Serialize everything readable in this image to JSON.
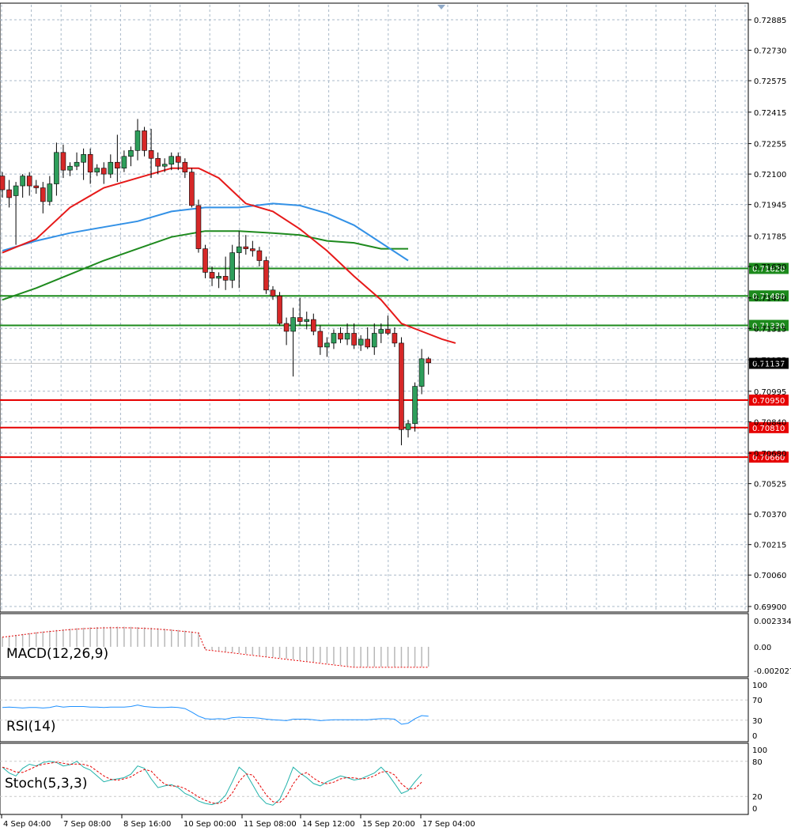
{
  "chart_data": [
    {
      "type": "candlestick",
      "symbol_panel": "price",
      "y_ticks": [
        "0.72885",
        "0.72730",
        "0.72575",
        "0.72415",
        "0.72255",
        "0.72100",
        "0.71945",
        "0.71785",
        "0.71630",
        "0.71470",
        "0.71315",
        "0.71155",
        "0.70995",
        "0.70840",
        "0.70680",
        "0.70525",
        "0.70370",
        "0.70215",
        "0.70060",
        "0.69900"
      ],
      "ylim": [
        0.699,
        0.7293
      ],
      "x_labels": [
        "4 Sep 04:00",
        "7 Sep 08:00",
        "8 Sep 16:00",
        "10 Sep 00:00",
        "11 Sep 08:00",
        "14 Sep 12:00",
        "15 Sep 20:00",
        "17 Sep 04:00"
      ],
      "current_price": "0.71137",
      "resistance_levels": [
        "0.71620",
        "0.71480",
        "0.71330"
      ],
      "support_levels": [
        "0.70950",
        "0.70810",
        "0.70660"
      ],
      "colors": {
        "bull": "#2e9e5b",
        "bear": "#d62828",
        "resistance": "#1c8a1c",
        "support": "#e60000",
        "ma_fast": "#e61919",
        "ma_mid": "#3391e6",
        "ma_slow": "#1e8a1e",
        "grid": "#a9b8c8"
      },
      "candles": [
        [
          0.7209,
          0.7211,
          0.7198,
          0.7202
        ],
        [
          0.7202,
          0.7207,
          0.7193,
          0.7198
        ],
        [
          0.7199,
          0.7206,
          0.7174,
          0.7204
        ],
        [
          0.7204,
          0.721,
          0.7198,
          0.7209
        ],
        [
          0.7209,
          0.7211,
          0.7199,
          0.7204
        ],
        [
          0.7204,
          0.7207,
          0.72,
          0.7203
        ],
        [
          0.7203,
          0.7206,
          0.719,
          0.7196
        ],
        [
          0.7196,
          0.7209,
          0.7194,
          0.7205
        ],
        [
          0.7205,
          0.7226,
          0.7199,
          0.7221
        ],
        [
          0.7221,
          0.7225,
          0.7208,
          0.7212
        ],
        [
          0.7212,
          0.7216,
          0.7209,
          0.7214
        ],
        [
          0.7214,
          0.7221,
          0.7212,
          0.7216
        ],
        [
          0.7216,
          0.7223,
          0.7207,
          0.722
        ],
        [
          0.722,
          0.7223,
          0.7205,
          0.7211
        ],
        [
          0.7211,
          0.7215,
          0.7209,
          0.7213
        ],
        [
          0.7213,
          0.7216,
          0.7205,
          0.721
        ],
        [
          0.721,
          0.722,
          0.7208,
          0.7216
        ],
        [
          0.7216,
          0.723,
          0.7206,
          0.7213
        ],
        [
          0.7213,
          0.7222,
          0.7211,
          0.7219
        ],
        [
          0.7219,
          0.7224,
          0.7214,
          0.7222
        ],
        [
          0.7222,
          0.7238,
          0.7217,
          0.7232
        ],
        [
          0.7232,
          0.7234,
          0.7219,
          0.7222
        ],
        [
          0.7222,
          0.7233,
          0.7208,
          0.7218
        ],
        [
          0.7218,
          0.7221,
          0.721,
          0.7214
        ],
        [
          0.7214,
          0.7218,
          0.7211,
          0.7215
        ],
        [
          0.7215,
          0.7221,
          0.7212,
          0.7219
        ],
        [
          0.7219,
          0.7221,
          0.7212,
          0.7216
        ],
        [
          0.7216,
          0.7218,
          0.7208,
          0.7211
        ],
        [
          0.7211,
          0.7213,
          0.7193,
          0.7194
        ],
        [
          0.7194,
          0.7197,
          0.717,
          0.7172
        ],
        [
          0.7172,
          0.7174,
          0.7157,
          0.716
        ],
        [
          0.716,
          0.7163,
          0.7153,
          0.7157
        ],
        [
          0.7157,
          0.716,
          0.7152,
          0.7158
        ],
        [
          0.7158,
          0.7168,
          0.7151,
          0.7156
        ],
        [
          0.7156,
          0.7174,
          0.7152,
          0.717
        ],
        [
          0.717,
          0.7181,
          0.7152,
          0.7173
        ],
        [
          0.7173,
          0.7179,
          0.7169,
          0.7172
        ],
        [
          0.7172,
          0.7176,
          0.7168,
          0.7171
        ],
        [
          0.7171,
          0.7173,
          0.7163,
          0.7166
        ],
        [
          0.7166,
          0.7168,
          0.7149,
          0.7151
        ],
        [
          0.7151,
          0.7153,
          0.7146,
          0.7148
        ],
        [
          0.7148,
          0.715,
          0.7133,
          0.7134
        ],
        [
          0.7134,
          0.7137,
          0.7123,
          0.713
        ],
        [
          0.713,
          0.7142,
          0.7107,
          0.7137
        ],
        [
          0.7137,
          0.7147,
          0.7133,
          0.7135
        ],
        [
          0.7135,
          0.714,
          0.7131,
          0.7136
        ],
        [
          0.7136,
          0.7139,
          0.7128,
          0.713
        ],
        [
          0.713,
          0.7133,
          0.7118,
          0.7122
        ],
        [
          0.7122,
          0.7127,
          0.7117,
          0.7124
        ],
        [
          0.7124,
          0.7131,
          0.7121,
          0.7129
        ],
        [
          0.7129,
          0.7132,
          0.7124,
          0.7126
        ],
        [
          0.7126,
          0.7134,
          0.7123,
          0.7129
        ],
        [
          0.7129,
          0.7134,
          0.7121,
          0.7123
        ],
        [
          0.7123,
          0.7128,
          0.712,
          0.7126
        ],
        [
          0.7126,
          0.7132,
          0.7121,
          0.7122
        ],
        [
          0.7122,
          0.7134,
          0.7118,
          0.7129
        ],
        [
          0.7129,
          0.7134,
          0.7124,
          0.7131
        ],
        [
          0.7131,
          0.7138,
          0.7128,
          0.7129
        ],
        [
          0.7129,
          0.7132,
          0.7122,
          0.7124
        ],
        [
          0.7124,
          0.7127,
          0.7072,
          0.708
        ],
        [
          0.708,
          0.7085,
          0.7076,
          0.7083
        ],
        [
          0.7083,
          0.7104,
          0.7079,
          0.7102
        ],
        [
          0.7102,
          0.7121,
          0.7098,
          0.7116
        ],
        [
          0.7116,
          0.7117,
          0.7108,
          0.7114
        ]
      ],
      "ma_fast": [
        [
          0,
          0.717
        ],
        [
          5,
          0.7177
        ],
        [
          10,
          0.7193
        ],
        [
          15,
          0.7203
        ],
        [
          20,
          0.7208
        ],
        [
          25,
          0.7213
        ],
        [
          29,
          0.7213
        ],
        [
          32,
          0.7208
        ],
        [
          36,
          0.7195
        ],
        [
          40,
          0.7191
        ],
        [
          44,
          0.7182
        ],
        [
          48,
          0.7171
        ],
        [
          52,
          0.7158
        ],
        [
          56,
          0.7146
        ],
        [
          59,
          0.7134
        ],
        [
          62,
          0.713
        ],
        [
          65,
          0.7126
        ],
        [
          67,
          0.7124
        ]
      ],
      "ma_mid": [
        [
          0,
          0.7171
        ],
        [
          5,
          0.7176
        ],
        [
          10,
          0.718
        ],
        [
          15,
          0.7183
        ],
        [
          20,
          0.7186
        ],
        [
          25,
          0.7191
        ],
        [
          30,
          0.7193
        ],
        [
          35,
          0.7193
        ],
        [
          40,
          0.7195
        ],
        [
          44,
          0.7194
        ],
        [
          48,
          0.719
        ],
        [
          52,
          0.7184
        ],
        [
          56,
          0.7175
        ],
        [
          60,
          0.7166
        ]
      ],
      "ma_slow": [
        [
          0,
          0.7146
        ],
        [
          5,
          0.7152
        ],
        [
          10,
          0.7159
        ],
        [
          15,
          0.7166
        ],
        [
          20,
          0.7172
        ],
        [
          25,
          0.7178
        ],
        [
          30,
          0.7181
        ],
        [
          35,
          0.7181
        ],
        [
          40,
          0.718
        ],
        [
          44,
          0.7179
        ],
        [
          48,
          0.7176
        ],
        [
          52,
          0.7175
        ],
        [
          56,
          0.7172
        ],
        [
          60,
          0.7172
        ]
      ]
    },
    {
      "type": "bar",
      "panel": "MACD",
      "label": "MACD(12,26,9)",
      "y_ticks": [
        "0.002334",
        "0.00",
        "-0.002027"
      ],
      "ylim": [
        -0.002027,
        0.002334
      ]
    },
    {
      "type": "line",
      "panel": "RSI",
      "label": "RSI(14)",
      "y_ticks": [
        "100",
        "70",
        "30",
        "0"
      ],
      "ylim": [
        0,
        100
      ]
    },
    {
      "type": "line",
      "panel": "Stochastic",
      "label": "Stoch(5,3,3)",
      "y_ticks": [
        "100",
        "80",
        "20",
        "0"
      ],
      "ylim": [
        0,
        100
      ]
    }
  ]
}
